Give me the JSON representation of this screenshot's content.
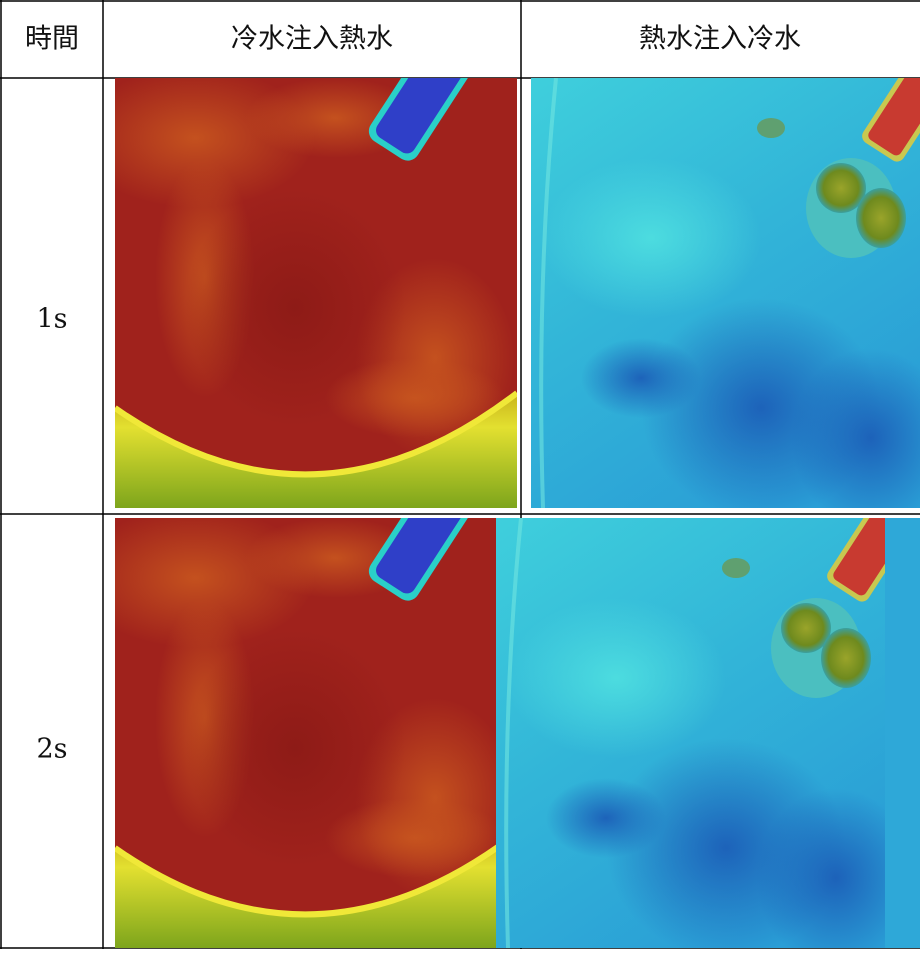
{
  "table": {
    "header": [
      "時間",
      "冷水注入熱水",
      "熱水注入冷水"
    ],
    "rows": [
      [
        "1s"
      ],
      [
        "2s"
      ]
    ]
  }
}
